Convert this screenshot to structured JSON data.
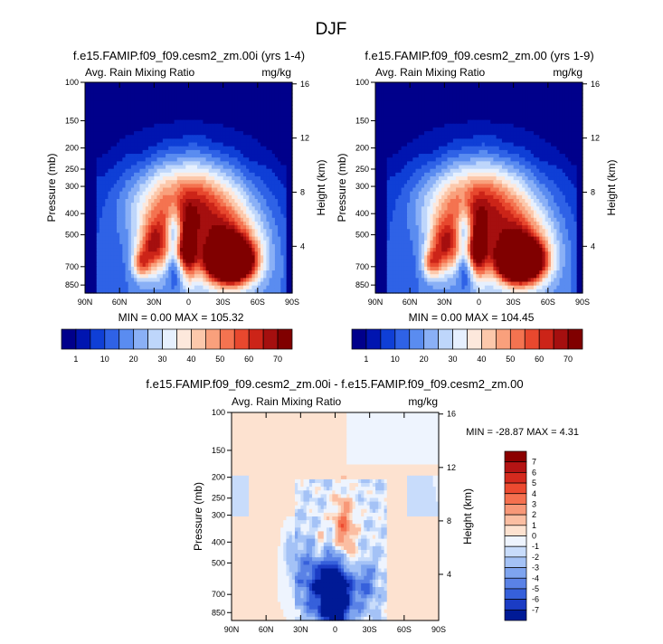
{
  "page": {
    "title": "DJF"
  },
  "axes": {
    "ylabel": "Pressure (mb)",
    "ylabel_right": "Height (km)",
    "xticks": [
      "90N",
      "60N",
      "30N",
      "0",
      "30S",
      "60S",
      "90S"
    ],
    "pticks": [
      "100",
      "150",
      "200",
      "250",
      "300",
      "400",
      "500",
      "700",
      "850"
    ],
    "hticks": [
      "16",
      "12",
      "8",
      "4"
    ]
  },
  "chart_data": [
    {
      "type": "heatmap",
      "title": "f.e15.FAMIP.f09_f09.cesm2_zm.00i (yrs 1-4)",
      "left_label": "Avg. Rain Mixing Ratio",
      "right_label": "mg/kg",
      "stats": "MIN =  0.00   MAX = 105.32",
      "min": 0.0,
      "max": 105.32,
      "xlim": [
        90,
        -90
      ],
      "ylim": [
        1000,
        100
      ],
      "colorbar": {
        "levels": [
          "1",
          "10",
          "20",
          "30",
          "40",
          "50",
          "60",
          "70"
        ],
        "colors": [
          "#00008b",
          "#0015b0",
          "#0f3fd6",
          "#2f62e6",
          "#5a8cf0",
          "#8ab0f6",
          "#bed6fb",
          "#e6f0fe",
          "#fde8dc",
          "#fcc8ab",
          "#f9a07c",
          "#f47350",
          "#e8482e",
          "#cc2418",
          "#a50f0f",
          "#800000"
        ]
      }
    },
    {
      "type": "heatmap",
      "title": "f.e15.FAMIP.f09_f09.cesm2_zm.00 (yrs 1-9)",
      "left_label": "Avg. Rain Mixing Ratio",
      "right_label": "mg/kg",
      "stats": "MIN =  0.00   MAX = 104.45",
      "min": 0.0,
      "max": 104.45,
      "xlim": [
        90,
        -90
      ],
      "ylim": [
        1000,
        100
      ],
      "colorbar": {
        "levels": [
          "1",
          "10",
          "20",
          "30",
          "40",
          "50",
          "60",
          "70"
        ]
      }
    },
    {
      "type": "heatmap",
      "title": "f.e15.FAMIP.f09_f09.cesm2_zm.00i - f.e15.FAMIP.f09_f09.cesm2_zm.00",
      "left_label": "Avg. Rain Mixing Ratio",
      "right_label": "mg/kg",
      "stats": "MIN = -28.87   MAX =   4.31",
      "min": -28.87,
      "max": 4.31,
      "xlim": [
        90,
        -90
      ],
      "ylim": [
        1000,
        100
      ],
      "colorbar": {
        "levels": [
          "7",
          "6",
          "5",
          "4",
          "3",
          "2",
          "1",
          "0",
          "-1",
          "-2",
          "-3",
          "-4",
          "-5",
          "-6",
          "-7"
        ],
        "colors": [
          "#8b0000",
          "#b41414",
          "#d42a1e",
          "#ec4a30",
          "#f5704f",
          "#f89878",
          "#fbbea2",
          "#fde2d0",
          "#eef4fe",
          "#c8dcfb",
          "#a4c2f6",
          "#7ea4ef",
          "#5a82e6",
          "#3660db",
          "#1b3cc4",
          "#001a96"
        ]
      }
    }
  ]
}
